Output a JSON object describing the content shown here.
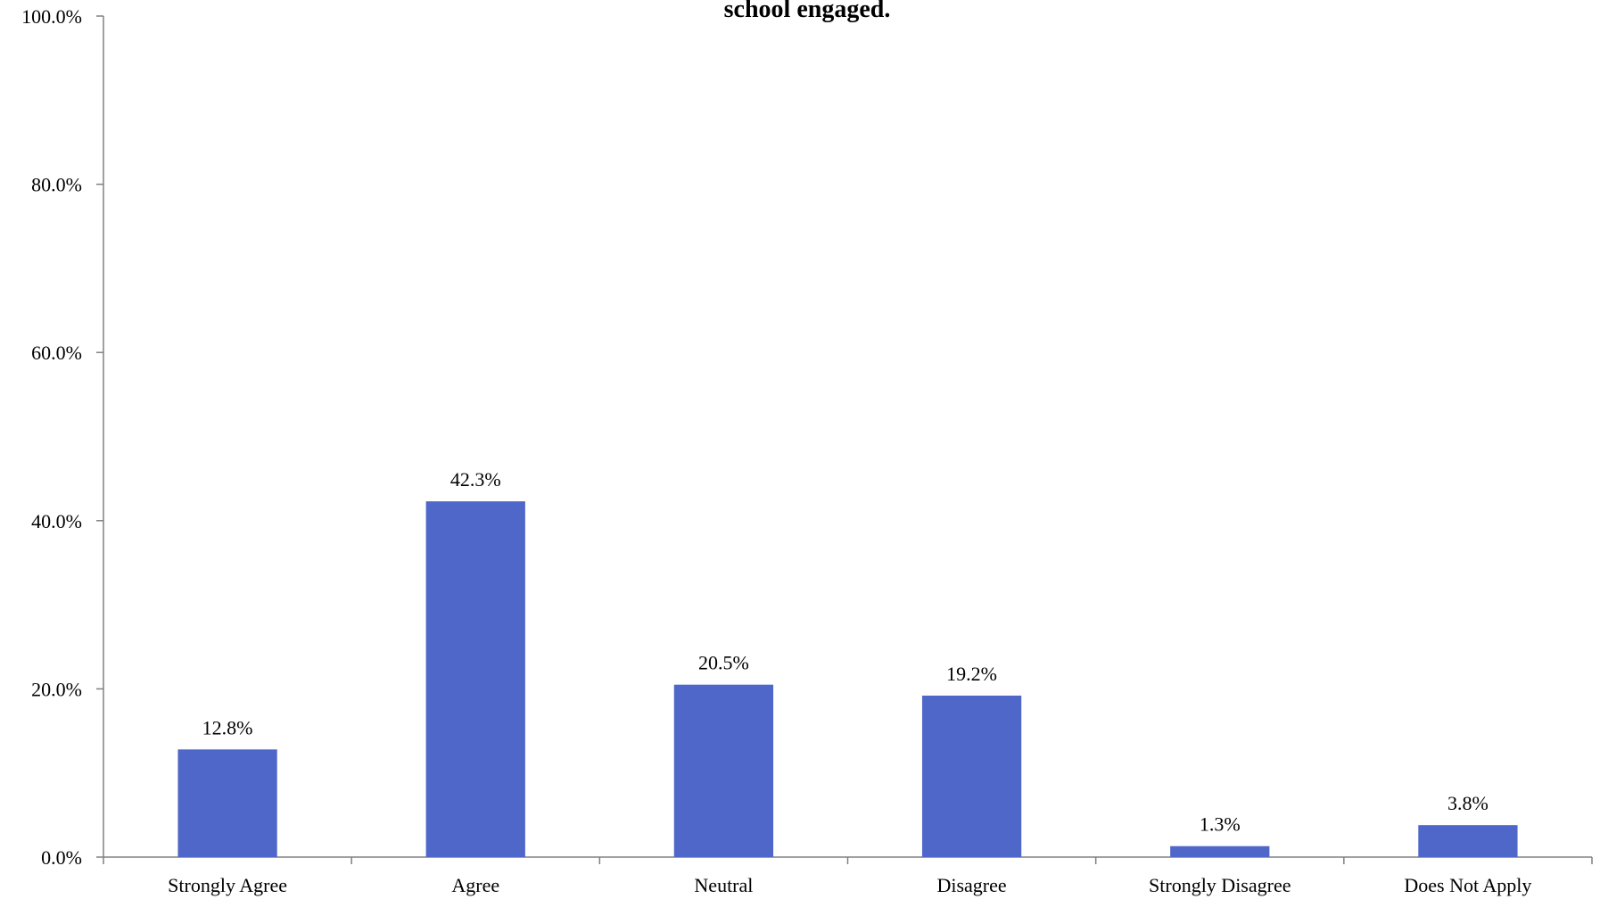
{
  "chart_data": {
    "type": "bar",
    "title": "school engaged.",
    "categories": [
      "Strongly Agree",
      "Agree",
      "Neutral",
      "Disagree",
      "Strongly Disagree",
      "Does Not Apply"
    ],
    "values": [
      12.8,
      42.3,
      20.5,
      19.2,
      1.3,
      3.8
    ],
    "data_labels": [
      "12.8%",
      "42.3%",
      "20.5%",
      "19.2%",
      "1.3%",
      "3.8%"
    ],
    "ylim": [
      0,
      100
    ],
    "yticks": [
      0,
      20,
      40,
      60,
      80,
      100
    ],
    "ytick_labels": [
      "0.0%",
      "20.0%",
      "40.0%",
      "60.0%",
      "80.0%",
      "100.0%"
    ],
    "xlabel": "",
    "ylabel": "",
    "grid": false,
    "legend": "none",
    "bar_color": "#4f67c8"
  }
}
